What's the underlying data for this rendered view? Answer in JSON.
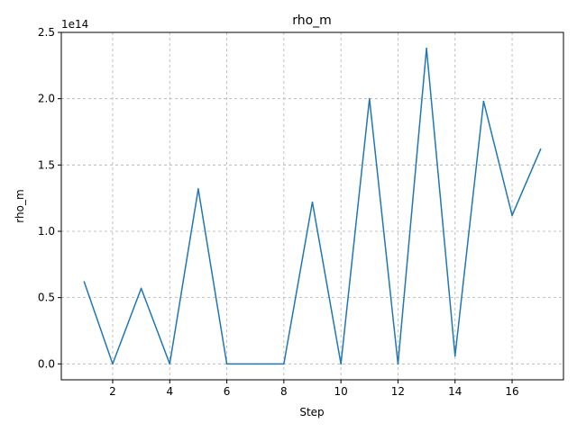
{
  "chart_data": {
    "type": "line",
    "title": "rho_m",
    "xlabel": "Step",
    "ylabel": "rho_m",
    "y_offset_label": "1e14",
    "xlim": [
      0.2,
      17.8
    ],
    "ylim": [
      -0.12,
      2.5
    ],
    "grid": true,
    "x_ticks": [
      2,
      4,
      6,
      8,
      10,
      12,
      14,
      16
    ],
    "x_tick_labels": [
      "2",
      "4",
      "6",
      "8",
      "10",
      "12",
      "14",
      "16"
    ],
    "y_ticks": [
      0.0,
      0.5,
      1.0,
      1.5,
      2.0,
      2.5
    ],
    "y_tick_labels": [
      "0.0",
      "0.5",
      "1.0",
      "1.5",
      "2.0",
      "2.5"
    ],
    "series": [
      {
        "name": "rho_m",
        "color": "#1f77b4",
        "x": [
          1,
          2,
          3,
          4,
          5,
          6,
          7,
          8,
          9,
          10,
          11,
          12,
          13,
          14,
          15,
          16,
          17
        ],
        "values": [
          0.62,
          0.0,
          0.57,
          0.0,
          1.32,
          0.0,
          0.0,
          0.0,
          1.22,
          0.0,
          2.0,
          0.0,
          2.38,
          0.06,
          1.98,
          1.12,
          1.62
        ]
      }
    ]
  }
}
